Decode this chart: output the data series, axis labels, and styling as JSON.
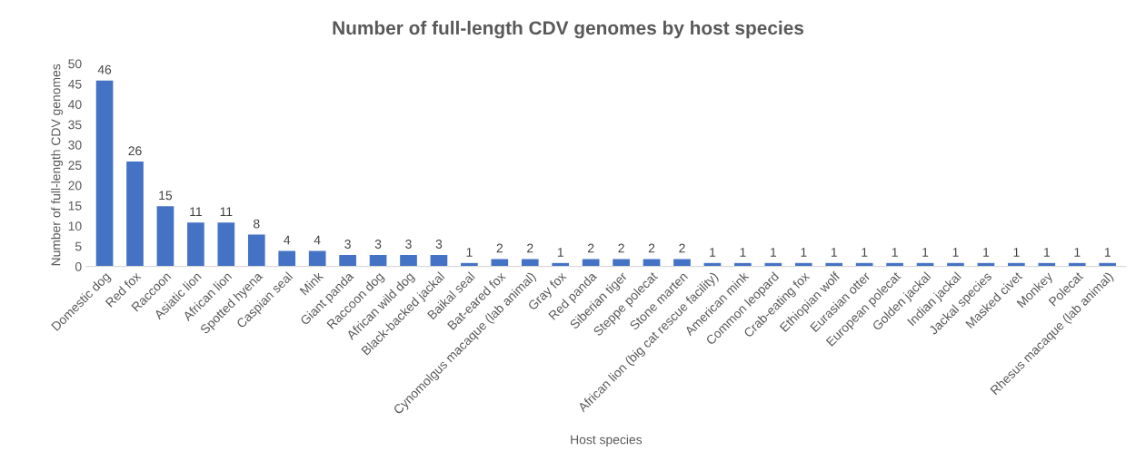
{
  "chart_data": {
    "type": "bar",
    "title": "Number of full-length CDV genomes by host species",
    "xlabel": "Host species",
    "ylabel": "Number of full-length CDV genomes",
    "categories": [
      "Domestic dog",
      "Red fox",
      "Raccoon",
      "Asiatic lion",
      "African lion",
      "Spotted hyena",
      "Caspian seal",
      "Mink",
      "Giant panda",
      "Raccoon dog",
      "African wild dog",
      "Black-backed jackal",
      "Baikal seal",
      "Bat-eared fox",
      "Cynomolgus macaque (lab animal)",
      "Gray fox",
      "Red panda",
      "Siberian tiger",
      "Steppe polecat",
      "Stone marten",
      "African lion (big cat rescue facility)",
      "American mink",
      "Common leopard",
      "Crab-eating fox",
      "Ethiopian wolf",
      "Eurasian otter",
      "European polecat",
      "Golden jackal",
      "Indian jackal",
      "Jackal species",
      "Masked civet",
      "Monkey",
      "Polecat",
      "Rhesus macaque (lab animal)"
    ],
    "values": [
      46,
      26,
      15,
      11,
      11,
      8,
      4,
      4,
      3,
      3,
      3,
      3,
      1,
      2,
      2,
      1,
      2,
      2,
      2,
      2,
      1,
      1,
      1,
      1,
      1,
      1,
      1,
      1,
      1,
      1,
      1,
      1,
      1,
      1
    ],
    "color": "#4472c4",
    "ylim": [
      0,
      50
    ],
    "yticks": [
      0,
      5,
      10,
      15,
      20,
      25,
      30,
      35,
      40,
      45,
      50
    ],
    "data_labels": true,
    "grid": false,
    "legend": false
  }
}
